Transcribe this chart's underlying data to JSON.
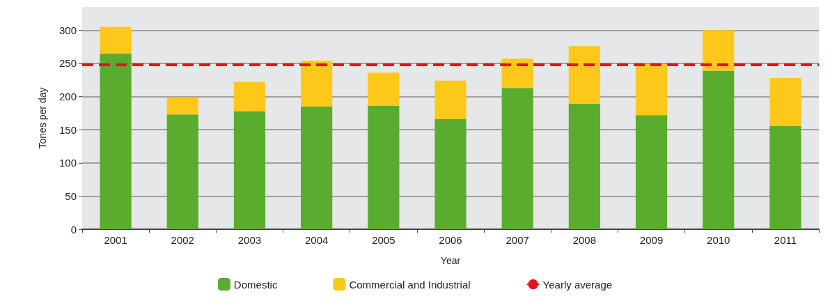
{
  "chart_data": {
    "type": "bar",
    "stacked": true,
    "xlabel": "Year",
    "ylabel": "Tones per day",
    "categories": [
      "2001",
      "2002",
      "2003",
      "2004",
      "2005",
      "2006",
      "2007",
      "2008",
      "2009",
      "2010",
      "2011"
    ],
    "series": [
      {
        "name": "Domestic",
        "color": "#5aac2e",
        "values": [
          265,
          173,
          178,
          185,
          186,
          166,
          213,
          189,
          172,
          239,
          156
        ]
      },
      {
        "name": "Commercial and Industrial",
        "color": "#fdc81a",
        "values": [
          40,
          26,
          44,
          69,
          50,
          58,
          44,
          87,
          77,
          61,
          72
        ]
      }
    ],
    "ref_lines": [
      {
        "axis": "y",
        "value": 248,
        "label": "Yearly average",
        "color": "#e8101f",
        "line_style": "dashed"
      }
    ],
    "ylim": [
      0,
      335
    ],
    "yticks": [
      0,
      50,
      100,
      150,
      200,
      250,
      300
    ],
    "grid": "y",
    "legend": "bottom"
  }
}
